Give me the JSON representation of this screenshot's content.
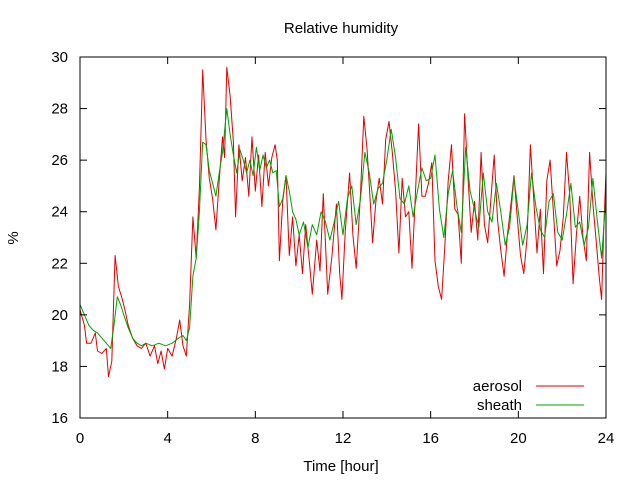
{
  "chart_data": {
    "type": "line",
    "title": "Relative humidity",
    "xlabel": "Time [hour]",
    "ylabel": "%",
    "xlim": [
      0,
      24
    ],
    "ylim": [
      16,
      30
    ],
    "xticks": [
      0,
      4,
      8,
      12,
      16,
      20,
      24
    ],
    "yticks": [
      16,
      18,
      20,
      22,
      24,
      26,
      28,
      30
    ],
    "grid": false,
    "legend_position": "bottom-right",
    "series": [
      {
        "name": "aerosol",
        "color": "#e00000",
        "points": [
          [
            0.0,
            20.2
          ],
          [
            0.2,
            19.6
          ],
          [
            0.3,
            18.9
          ],
          [
            0.5,
            18.9
          ],
          [
            0.7,
            19.3
          ],
          [
            0.8,
            18.6
          ],
          [
            1.0,
            18.5
          ],
          [
            1.2,
            18.7
          ],
          [
            1.3,
            17.6
          ],
          [
            1.45,
            18.2
          ],
          [
            1.6,
            22.3
          ],
          [
            1.75,
            21.1
          ],
          [
            1.9,
            20.7
          ],
          [
            2.05,
            20.2
          ],
          [
            2.2,
            19.6
          ],
          [
            2.4,
            19.1
          ],
          [
            2.6,
            18.8
          ],
          [
            2.8,
            18.7
          ],
          [
            3.0,
            18.9
          ],
          [
            3.2,
            18.4
          ],
          [
            3.4,
            18.8
          ],
          [
            3.55,
            18.1
          ],
          [
            3.7,
            18.6
          ],
          [
            3.85,
            17.9
          ],
          [
            4.0,
            18.7
          ],
          [
            4.2,
            18.4
          ],
          [
            4.4,
            19.1
          ],
          [
            4.55,
            19.8
          ],
          [
            4.7,
            18.8
          ],
          [
            4.85,
            18.4
          ],
          [
            5.0,
            20.4
          ],
          [
            5.15,
            23.8
          ],
          [
            5.3,
            22.2
          ],
          [
            5.45,
            24.9
          ],
          [
            5.6,
            29.5
          ],
          [
            5.75,
            26.8
          ],
          [
            5.9,
            25.3
          ],
          [
            6.05,
            24.5
          ],
          [
            6.2,
            23.3
          ],
          [
            6.35,
            25.2
          ],
          [
            6.5,
            26.9
          ],
          [
            6.6,
            26.1
          ],
          [
            6.7,
            29.6
          ],
          [
            6.85,
            28.5
          ],
          [
            7.0,
            26.7
          ],
          [
            7.1,
            23.8
          ],
          [
            7.25,
            26.6
          ],
          [
            7.4,
            25.2
          ],
          [
            7.55,
            26.1
          ],
          [
            7.7,
            24.6
          ],
          [
            7.85,
            26.9
          ],
          [
            8.0,
            24.8
          ],
          [
            8.15,
            26.2
          ],
          [
            8.3,
            24.2
          ],
          [
            8.45,
            26.3
          ],
          [
            8.6,
            25.0
          ],
          [
            8.75,
            26.1
          ],
          [
            8.9,
            26.6
          ],
          [
            9.0,
            26.0
          ],
          [
            9.1,
            22.1
          ],
          [
            9.25,
            24.4
          ],
          [
            9.4,
            25.4
          ],
          [
            9.55,
            22.3
          ],
          [
            9.7,
            23.8
          ],
          [
            9.85,
            21.9
          ],
          [
            10.0,
            23.1
          ],
          [
            10.15,
            21.6
          ],
          [
            10.3,
            23.5
          ],
          [
            10.45,
            22.2
          ],
          [
            10.6,
            20.8
          ],
          [
            10.8,
            22.9
          ],
          [
            10.95,
            21.7
          ],
          [
            11.1,
            24.7
          ],
          [
            11.3,
            20.8
          ],
          [
            11.5,
            22.3
          ],
          [
            11.7,
            24.3
          ],
          [
            11.85,
            21.6
          ],
          [
            11.95,
            20.6
          ],
          [
            12.1,
            23.2
          ],
          [
            12.3,
            25.5
          ],
          [
            12.45,
            23.1
          ],
          [
            12.6,
            21.8
          ],
          [
            12.8,
            24.7
          ],
          [
            12.95,
            27.7
          ],
          [
            13.1,
            26.4
          ],
          [
            13.2,
            25.0
          ],
          [
            13.35,
            22.8
          ],
          [
            13.5,
            24.4
          ],
          [
            13.65,
            25.3
          ],
          [
            13.8,
            24.3
          ],
          [
            13.95,
            26.8
          ],
          [
            14.1,
            27.5
          ],
          [
            14.25,
            26.3
          ],
          [
            14.4,
            24.8
          ],
          [
            14.55,
            22.4
          ],
          [
            14.7,
            25.3
          ],
          [
            14.85,
            23.8
          ],
          [
            15.0,
            24.0
          ],
          [
            15.15,
            21.8
          ],
          [
            15.3,
            24.6
          ],
          [
            15.45,
            27.4
          ],
          [
            15.6,
            24.6
          ],
          [
            15.75,
            24.6
          ],
          [
            15.9,
            25.1
          ],
          [
            16.05,
            25.9
          ],
          [
            16.2,
            22.1
          ],
          [
            16.35,
            21.1
          ],
          [
            16.5,
            20.6
          ],
          [
            16.65,
            22.7
          ],
          [
            16.8,
            25.2
          ],
          [
            16.95,
            26.6
          ],
          [
            17.1,
            24.1
          ],
          [
            17.25,
            23.9
          ],
          [
            17.4,
            22.0
          ],
          [
            17.55,
            27.8
          ],
          [
            17.7,
            25.4
          ],
          [
            17.85,
            23.2
          ],
          [
            18.0,
            24.4
          ],
          [
            18.15,
            22.9
          ],
          [
            18.3,
            26.3
          ],
          [
            18.45,
            23.5
          ],
          [
            18.6,
            22.8
          ],
          [
            18.75,
            24.5
          ],
          [
            18.9,
            26.2
          ],
          [
            19.05,
            23.7
          ],
          [
            19.2,
            22.5
          ],
          [
            19.35,
            21.5
          ],
          [
            19.5,
            23.1
          ],
          [
            19.65,
            24.2
          ],
          [
            19.8,
            25.4
          ],
          [
            19.95,
            23.8
          ],
          [
            20.1,
            22.3
          ],
          [
            20.25,
            21.6
          ],
          [
            20.4,
            23.0
          ],
          [
            20.55,
            26.6
          ],
          [
            20.7,
            24.5
          ],
          [
            20.85,
            22.4
          ],
          [
            21.0,
            24.1
          ],
          [
            21.15,
            21.6
          ],
          [
            21.3,
            25.2
          ],
          [
            21.45,
            26.0
          ],
          [
            21.6,
            24.0
          ],
          [
            21.75,
            21.9
          ],
          [
            21.9,
            22.5
          ],
          [
            22.05,
            23.8
          ],
          [
            22.2,
            26.3
          ],
          [
            22.35,
            24.6
          ],
          [
            22.5,
            21.2
          ],
          [
            22.65,
            23.1
          ],
          [
            22.8,
            24.6
          ],
          [
            22.95,
            23.0
          ],
          [
            23.1,
            22.1
          ],
          [
            23.25,
            26.3
          ],
          [
            23.4,
            24.3
          ],
          [
            23.55,
            22.9
          ],
          [
            23.7,
            21.4
          ],
          [
            23.8,
            20.6
          ],
          [
            23.9,
            23.4
          ],
          [
            24.0,
            25.5
          ]
        ]
      },
      {
        "name": "sheath",
        "color": "#00a000",
        "points": [
          [
            0.0,
            20.4
          ],
          [
            0.2,
            20.0
          ],
          [
            0.4,
            19.6
          ],
          [
            0.6,
            19.4
          ],
          [
            0.8,
            19.3
          ],
          [
            1.0,
            19.1
          ],
          [
            1.2,
            18.9
          ],
          [
            1.4,
            18.7
          ],
          [
            1.55,
            19.6
          ],
          [
            1.7,
            20.7
          ],
          [
            1.85,
            20.4
          ],
          [
            2.0,
            20.0
          ],
          [
            2.2,
            19.5
          ],
          [
            2.4,
            19.1
          ],
          [
            2.6,
            18.9
          ],
          [
            2.8,
            18.8
          ],
          [
            3.0,
            18.9
          ],
          [
            3.3,
            18.8
          ],
          [
            3.6,
            18.9
          ],
          [
            3.9,
            18.8
          ],
          [
            4.2,
            18.9
          ],
          [
            4.5,
            19.1
          ],
          [
            4.7,
            19.2
          ],
          [
            4.85,
            19.0
          ],
          [
            5.0,
            19.5
          ],
          [
            5.15,
            21.5
          ],
          [
            5.3,
            22.2
          ],
          [
            5.45,
            24.0
          ],
          [
            5.6,
            26.7
          ],
          [
            5.75,
            26.6
          ],
          [
            5.9,
            25.6
          ],
          [
            6.05,
            25.1
          ],
          [
            6.2,
            24.6
          ],
          [
            6.35,
            25.5
          ],
          [
            6.5,
            26.3
          ],
          [
            6.7,
            28.0
          ],
          [
            6.85,
            27.0
          ],
          [
            7.0,
            26.2
          ],
          [
            7.15,
            25.5
          ],
          [
            7.3,
            26.4
          ],
          [
            7.45,
            26.0
          ],
          [
            7.6,
            25.5
          ],
          [
            7.75,
            26.0
          ],
          [
            7.9,
            25.4
          ],
          [
            8.05,
            26.5
          ],
          [
            8.2,
            25.6
          ],
          [
            8.35,
            26.2
          ],
          [
            8.5,
            25.7
          ],
          [
            8.65,
            26.0
          ],
          [
            8.8,
            25.5
          ],
          [
            8.95,
            25.6
          ],
          [
            9.1,
            24.2
          ],
          [
            9.25,
            24.5
          ],
          [
            9.4,
            25.4
          ],
          [
            9.55,
            24.8
          ],
          [
            9.7,
            24.0
          ],
          [
            9.85,
            23.7
          ],
          [
            10.0,
            23.1
          ],
          [
            10.2,
            23.6
          ],
          [
            10.4,
            22.6
          ],
          [
            10.6,
            23.5
          ],
          [
            10.8,
            23.1
          ],
          [
            11.0,
            24.0
          ],
          [
            11.2,
            23.6
          ],
          [
            11.4,
            22.9
          ],
          [
            11.6,
            23.6
          ],
          [
            11.8,
            24.4
          ],
          [
            12.0,
            23.1
          ],
          [
            12.2,
            24.5
          ],
          [
            12.4,
            25.0
          ],
          [
            12.6,
            23.5
          ],
          [
            12.8,
            24.5
          ],
          [
            13.0,
            26.3
          ],
          [
            13.2,
            25.5
          ],
          [
            13.4,
            24.3
          ],
          [
            13.6,
            24.9
          ],
          [
            13.8,
            25.1
          ],
          [
            14.0,
            26.0
          ],
          [
            14.2,
            27.2
          ],
          [
            14.4,
            26.1
          ],
          [
            14.6,
            24.5
          ],
          [
            14.8,
            24.3
          ],
          [
            15.0,
            25.0
          ],
          [
            15.2,
            23.8
          ],
          [
            15.4,
            24.8
          ],
          [
            15.6,
            25.7
          ],
          [
            15.8,
            25.2
          ],
          [
            16.0,
            25.3
          ],
          [
            16.2,
            26.2
          ],
          [
            16.4,
            24.1
          ],
          [
            16.6,
            23.0
          ],
          [
            16.8,
            24.7
          ],
          [
            17.0,
            25.6
          ],
          [
            17.2,
            24.2
          ],
          [
            17.4,
            23.2
          ],
          [
            17.6,
            26.5
          ],
          [
            17.8,
            24.8
          ],
          [
            18.0,
            24.1
          ],
          [
            18.2,
            23.4
          ],
          [
            18.4,
            25.5
          ],
          [
            18.6,
            24.0
          ],
          [
            18.8,
            23.6
          ],
          [
            19.0,
            25.1
          ],
          [
            19.2,
            24.0
          ],
          [
            19.4,
            22.7
          ],
          [
            19.6,
            23.4
          ],
          [
            19.8,
            25.3
          ],
          [
            20.0,
            24.0
          ],
          [
            20.2,
            22.7
          ],
          [
            20.4,
            23.5
          ],
          [
            20.6,
            25.5
          ],
          [
            20.8,
            24.2
          ],
          [
            21.0,
            23.3
          ],
          [
            21.2,
            23.0
          ],
          [
            21.4,
            24.4
          ],
          [
            21.6,
            24.7
          ],
          [
            21.8,
            23.2
          ],
          [
            22.0,
            22.9
          ],
          [
            22.2,
            23.9
          ],
          [
            22.4,
            25.1
          ],
          [
            22.6,
            23.4
          ],
          [
            22.8,
            23.6
          ],
          [
            23.0,
            22.7
          ],
          [
            23.2,
            23.4
          ],
          [
            23.4,
            25.3
          ],
          [
            23.6,
            23.7
          ],
          [
            23.8,
            22.2
          ],
          [
            24.0,
            24.6
          ]
        ]
      }
    ]
  }
}
